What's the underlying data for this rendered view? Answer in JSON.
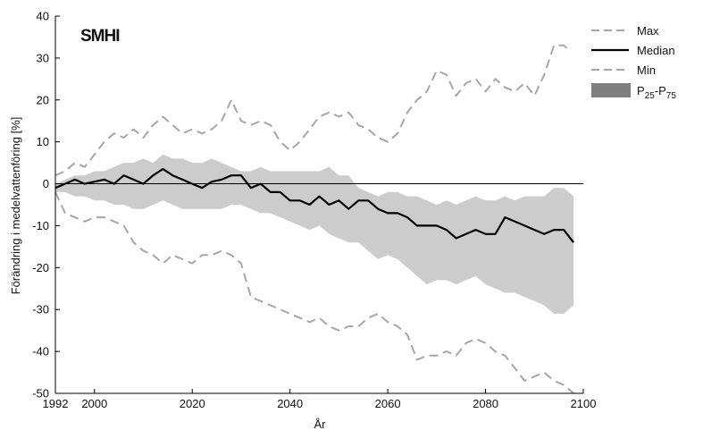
{
  "chart_data": {
    "type": "line",
    "logo": "SMHI",
    "xlabel": "År",
    "ylabel": "Förändring i medelvattenföring [%]",
    "xlim": [
      1992,
      2100
    ],
    "ylim": [
      -50,
      40
    ],
    "x_ticks": [
      1992,
      2000,
      2020,
      2040,
      2060,
      2080,
      2100
    ],
    "y_ticks": [
      -50,
      -40,
      -30,
      -20,
      -10,
      0,
      10,
      20,
      30,
      40
    ],
    "grid": false,
    "zero_line": true,
    "legend_position": "right-outside",
    "colors": {
      "max_min": "#a6a6a6",
      "median": "#000000",
      "band": "#cccccc",
      "band_legend": "#7f7f7f"
    },
    "series": [
      {
        "name": "Max",
        "style": "dashed",
        "x": [
          1992,
          1994,
          1996,
          1998,
          2000,
          2002,
          2004,
          2006,
          2008,
          2010,
          2012,
          2014,
          2016,
          2018,
          2020,
          2022,
          2024,
          2026,
          2028,
          2030,
          2032,
          2034,
          2036,
          2038,
          2040,
          2042,
          2044,
          2046,
          2048,
          2050,
          2052,
          2054,
          2056,
          2058,
          2060,
          2062,
          2064,
          2066,
          2068,
          2070,
          2072,
          2074,
          2076,
          2078,
          2080,
          2082,
          2084,
          2086,
          2088,
          2090,
          2092,
          2094,
          2096,
          2097
        ],
        "y": [
          2,
          3,
          5,
          4,
          7,
          10,
          12,
          11,
          13,
          11,
          14,
          16,
          14,
          12,
          13,
          12,
          13,
          15,
          20,
          15,
          14,
          15,
          14,
          10,
          8,
          10,
          13,
          16,
          17,
          16,
          17,
          14,
          13,
          11,
          10,
          12,
          17,
          20,
          22,
          27,
          26,
          21,
          24,
          25,
          22,
          25,
          23,
          22,
          24,
          21,
          26,
          33,
          33,
          32
        ]
      },
      {
        "name": "Median",
        "style": "solid",
        "x": [
          1992,
          1994,
          1996,
          1998,
          2000,
          2002,
          2004,
          2006,
          2008,
          2010,
          2012,
          2014,
          2016,
          2018,
          2020,
          2022,
          2024,
          2026,
          2028,
          2030,
          2032,
          2034,
          2036,
          2038,
          2040,
          2042,
          2044,
          2046,
          2048,
          2050,
          2052,
          2054,
          2056,
          2058,
          2060,
          2062,
          2064,
          2066,
          2068,
          2070,
          2072,
          2074,
          2076,
          2078,
          2080,
          2082,
          2084,
          2086,
          2088,
          2090,
          2092,
          2094,
          2096,
          2098
        ],
        "y": [
          -1,
          0,
          1,
          0,
          0.5,
          1,
          0,
          2,
          1,
          0,
          2,
          3.5,
          2,
          1,
          0,
          -1,
          0.5,
          1,
          2,
          2,
          -1,
          0,
          -2,
          -2,
          -4,
          -4,
          -5,
          -3,
          -5,
          -4,
          -6,
          -4,
          -4,
          -6,
          -7,
          -7,
          -8,
          -10,
          -10,
          -10,
          -11,
          -13,
          -12,
          -11,
          -12,
          -12,
          -8,
          -9,
          -10,
          -11,
          -12,
          -11,
          -11,
          -14
        ]
      },
      {
        "name": "Min",
        "style": "dashed",
        "x": [
          1992,
          1994,
          1996,
          1998,
          2000,
          2002,
          2004,
          2006,
          2008,
          2010,
          2012,
          2014,
          2016,
          2018,
          2020,
          2022,
          2024,
          2026,
          2028,
          2030,
          2032,
          2034,
          2036,
          2038,
          2040,
          2042,
          2044,
          2046,
          2048,
          2050,
          2052,
          2054,
          2056,
          2058,
          2060,
          2062,
          2064,
          2066,
          2068,
          2070,
          2072,
          2074,
          2076,
          2078,
          2080,
          2082,
          2084,
          2086,
          2088,
          2090,
          2092,
          2094,
          2096,
          2098
        ],
        "y": [
          -2,
          -7,
          -8,
          -9,
          -8,
          -8,
          -9,
          -10,
          -14,
          -16,
          -17,
          -19,
          -17,
          -18,
          -19,
          -17,
          -17,
          -16,
          -17,
          -19,
          -27,
          -28,
          -29,
          -30,
          -31,
          -32,
          -33,
          -32,
          -34,
          -35,
          -34,
          -34,
          -32,
          -31,
          -33,
          -34,
          -36,
          -42,
          -41,
          -41,
          -40,
          -41,
          -38,
          -37,
          -38,
          -40,
          -41,
          -44,
          -47,
          -46,
          -45,
          -47,
          -48,
          -50
        ]
      },
      {
        "name": "P25-P75",
        "type": "band",
        "x": [
          1992,
          1994,
          1996,
          1998,
          2000,
          2002,
          2004,
          2006,
          2008,
          2010,
          2012,
          2014,
          2016,
          2018,
          2020,
          2022,
          2024,
          2026,
          2028,
          2030,
          2032,
          2034,
          2036,
          2038,
          2040,
          2042,
          2044,
          2046,
          2048,
          2050,
          2052,
          2054,
          2056,
          2058,
          2060,
          2062,
          2064,
          2066,
          2068,
          2070,
          2072,
          2074,
          2076,
          2078,
          2080,
          2082,
          2084,
          2086,
          2088,
          2090,
          2092,
          2094,
          2096,
          2098
        ],
        "upper": [
          0,
          1,
          2,
          2,
          3,
          3,
          4,
          5,
          5,
          6,
          5,
          7,
          6,
          6,
          5,
          5,
          6,
          5,
          4,
          3,
          3,
          4,
          3,
          3,
          3,
          3,
          3,
          3,
          4,
          2,
          2,
          -1,
          -2,
          -3,
          -2,
          -2,
          -3,
          -3,
          -4,
          -5,
          -4,
          -5,
          -4,
          -3,
          -4,
          -4,
          -3,
          -4,
          -3,
          -3,
          -3,
          -1,
          -1,
          -3
        ],
        "lower": [
          -2,
          -2,
          -3,
          -3,
          -4,
          -4,
          -5,
          -5,
          -6,
          -6,
          -5,
          -4,
          -5,
          -6,
          -6,
          -6,
          -6,
          -6,
          -5,
          -5,
          -6,
          -7,
          -7,
          -8,
          -9,
          -10,
          -11,
          -10,
          -12,
          -13,
          -14,
          -14,
          -16,
          -18,
          -17,
          -18,
          -20,
          -22,
          -24,
          -23,
          -23,
          -24,
          -23,
          -22,
          -24,
          -25,
          -26,
          -26,
          -27,
          -28,
          -29,
          -31,
          -31,
          -29
        ]
      }
    ],
    "legend": [
      {
        "label": "Max",
        "style": "dashed"
      },
      {
        "label": "Median",
        "style": "solid"
      },
      {
        "label": "Min",
        "style": "dashed"
      },
      {
        "label_main": "P",
        "sub1": "25",
        "dash": "-P",
        "sub2": "75",
        "style": "band"
      }
    ]
  }
}
